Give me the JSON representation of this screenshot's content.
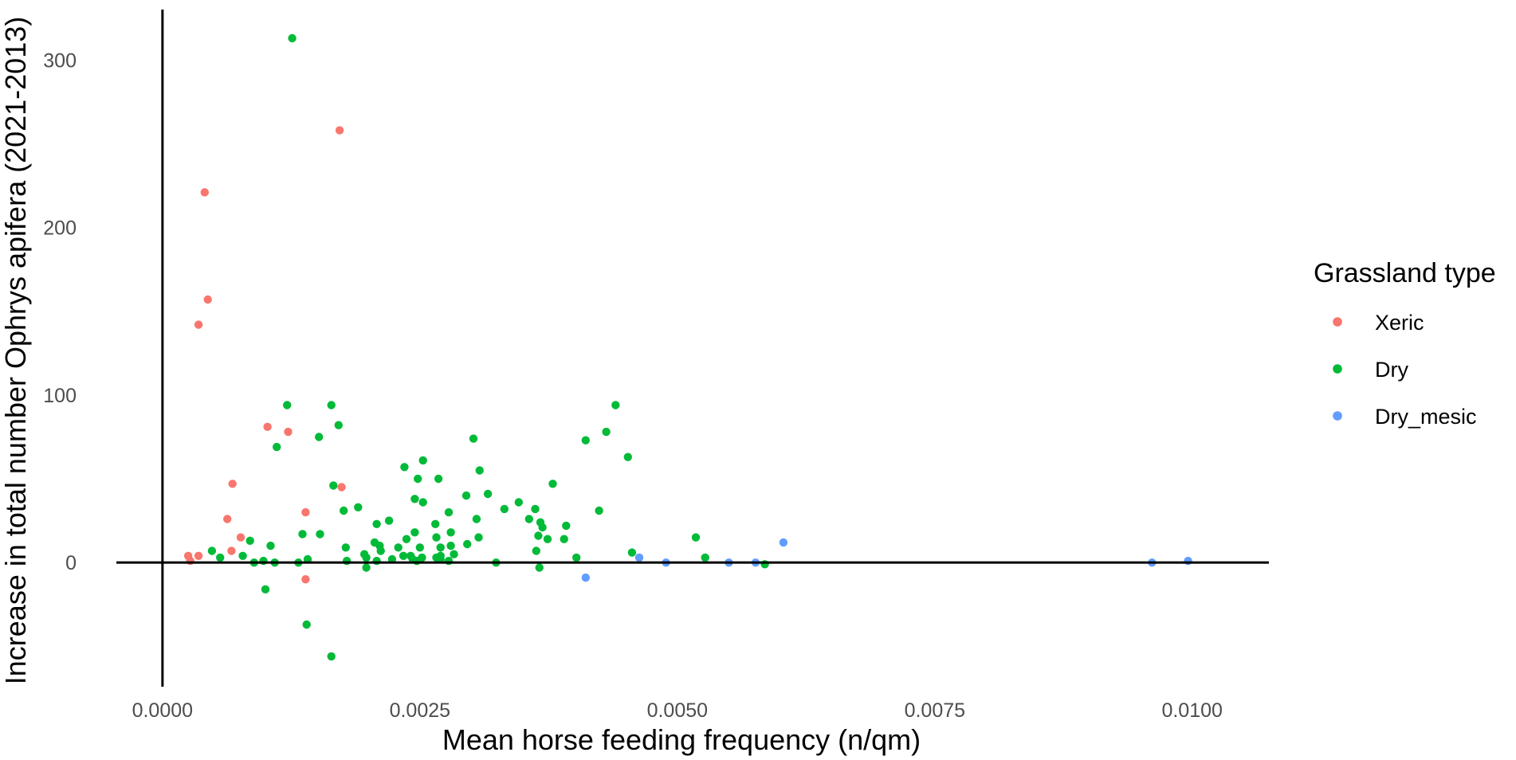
{
  "chart_data": {
    "type": "scatter",
    "xlabel": "Mean horse feeding frequency (n/qm)",
    "ylabel": "Increase in total number Ophrys apifera (2021-2013)",
    "xlim": [
      -0.00068,
      0.0109
    ],
    "ylim": [
      -76,
      332
    ],
    "x_ticks": [
      0.0,
      0.0025,
      0.005,
      0.0075,
      0.01
    ],
    "x_tick_labels": [
      "0.0000",
      "0.0025",
      "0.0050",
      "0.0075",
      "0.0100"
    ],
    "y_ticks": [
      0,
      100,
      200,
      300
    ],
    "y_tick_labels": [
      "0",
      "100",
      "200",
      "300"
    ],
    "grid": false,
    "reference_lines": {
      "x": 0,
      "y": 0
    },
    "legend": {
      "title": "Grassland type",
      "position": "right"
    },
    "series": [
      {
        "name": "Xeric",
        "color": "#F8766D",
        "points": [
          [
            0.00041,
            221
          ],
          [
            0.00044,
            157
          ],
          [
            0.00035,
            142
          ],
          [
            0.00172,
            258
          ],
          [
            0.00102,
            81
          ],
          [
            0.00122,
            78
          ],
          [
            0.00068,
            47
          ],
          [
            0.00174,
            45
          ],
          [
            0.00139,
            30
          ],
          [
            0.00063,
            26
          ],
          [
            0.00076,
            15
          ],
          [
            0.00067,
            7
          ],
          [
            0.00025,
            4
          ],
          [
            0.00035,
            4
          ],
          [
            0.00027,
            1
          ],
          [
            0.00139,
            -10
          ]
        ]
      },
      {
        "name": "Dry",
        "color": "#00BA38",
        "points": [
          [
            0.00126,
            313
          ],
          [
            0.00121,
            94
          ],
          [
            0.00164,
            94
          ],
          [
            0.0044,
            94
          ],
          [
            0.00171,
            82
          ],
          [
            0.00431,
            78
          ],
          [
            0.00152,
            75
          ],
          [
            0.00302,
            74
          ],
          [
            0.00411,
            73
          ],
          [
            0.00111,
            69
          ],
          [
            0.00452,
            63
          ],
          [
            0.00253,
            61
          ],
          [
            0.00235,
            57
          ],
          [
            0.00308,
            55
          ],
          [
            0.00166,
            46
          ],
          [
            0.00248,
            50
          ],
          [
            0.00268,
            50
          ],
          [
            0.00379,
            47
          ],
          [
            0.00295,
            40
          ],
          [
            0.00316,
            41
          ],
          [
            0.00245,
            38
          ],
          [
            0.00253,
            36
          ],
          [
            0.00346,
            36
          ],
          [
            0.0019,
            33
          ],
          [
            0.00176,
            31
          ],
          [
            0.00332,
            32
          ],
          [
            0.00362,
            32
          ],
          [
            0.00424,
            31
          ],
          [
            0.00278,
            30
          ],
          [
            0.00305,
            26
          ],
          [
            0.00356,
            26
          ],
          [
            0.0022,
            25
          ],
          [
            0.00208,
            23
          ],
          [
            0.00265,
            23
          ],
          [
            0.00367,
            24
          ],
          [
            0.00369,
            21
          ],
          [
            0.00392,
            22
          ],
          [
            0.00245,
            18
          ],
          [
            0.0028,
            18
          ],
          [
            0.00136,
            17
          ],
          [
            0.00153,
            17
          ],
          [
            0.00237,
            14
          ],
          [
            0.00266,
            15
          ],
          [
            0.00307,
            15
          ],
          [
            0.00365,
            16
          ],
          [
            0.00374,
            14
          ],
          [
            0.0039,
            14
          ],
          [
            0.00518,
            15
          ],
          [
            0.00085,
            13
          ],
          [
            0.00206,
            12
          ],
          [
            0.00229,
            9
          ],
          [
            0.00211,
            10
          ],
          [
            0.00105,
            10
          ],
          [
            0.00178,
            9
          ],
          [
            0.0025,
            9
          ],
          [
            0.0027,
            9
          ],
          [
            0.00296,
            11
          ],
          [
            0.0028,
            10
          ],
          [
            0.00048,
            7
          ],
          [
            0.00212,
            7
          ],
          [
            0.00363,
            7
          ],
          [
            0.00456,
            6
          ],
          [
            0.00283,
            5
          ],
          [
            0.00056,
            3
          ],
          [
            0.00078,
            4
          ],
          [
            0.00089,
            0
          ],
          [
            0.00098,
            1
          ],
          [
            0.00109,
            0
          ],
          [
            0.00141,
            2
          ],
          [
            0.00132,
            0
          ],
          [
            0.00179,
            1
          ],
          [
            0.00196,
            5
          ],
          [
            0.00198,
            3
          ],
          [
            0.00208,
            1
          ],
          [
            0.00223,
            2
          ],
          [
            0.00234,
            4
          ],
          [
            0.00241,
            4
          ],
          [
            0.00243,
            2
          ],
          [
            0.00247,
            1
          ],
          [
            0.00252,
            3
          ],
          [
            0.00266,
            3
          ],
          [
            0.0027,
            4
          ],
          [
            0.0027,
            2
          ],
          [
            0.00278,
            1
          ],
          [
            0.00324,
            0
          ],
          [
            0.00402,
            3
          ],
          [
            0.00527,
            3
          ],
          [
            0.00585,
            -1
          ],
          [
            0.00198,
            -3
          ],
          [
            0.00366,
            -3
          ],
          [
            0.001,
            -16
          ],
          [
            0.0014,
            -37
          ],
          [
            0.00164,
            -56
          ]
        ]
      },
      {
        "name": "Dry_mesic",
        "color": "#619CFF",
        "points": [
          [
            0.00603,
            12
          ],
          [
            0.00463,
            3
          ],
          [
            0.00489,
            0
          ],
          [
            0.0055,
            0
          ],
          [
            0.00576,
            0
          ],
          [
            0.00961,
            0
          ],
          [
            0.00996,
            1
          ],
          [
            0.00411,
            -9
          ]
        ]
      }
    ]
  }
}
